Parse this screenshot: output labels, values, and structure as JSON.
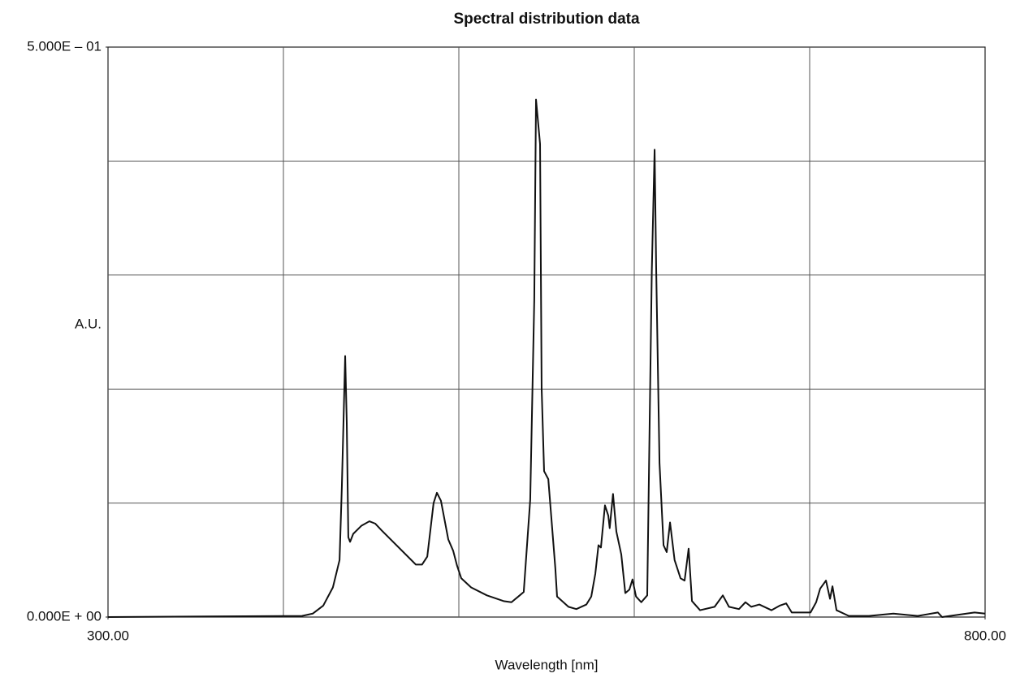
{
  "chart_data": {
    "type": "line",
    "title": "Spectral distribution data",
    "xlabel": "Wavelength [nm]",
    "ylabel": "A.U.",
    "xlim": [
      300,
      800
    ],
    "ylim": [
      0,
      0.5
    ],
    "xticks": [
      {
        "value": 300,
        "label": "300.00"
      },
      {
        "value": 800,
        "label": "800.00"
      }
    ],
    "yticks": [
      {
        "value": 0,
        "label": "0.000E + 00"
      },
      {
        "value": 0.5,
        "label": "5.000E – 01"
      }
    ],
    "xgrid": [
      400,
      500,
      600,
      700
    ],
    "ygrid": [
      0.1,
      0.2,
      0.3,
      0.4
    ],
    "grid": true,
    "series": [
      {
        "color": "#111111",
        "x": [
          300,
          410.6,
          416.7,
          422.7,
          428.2,
          432,
          433.3,
          435.2,
          436.1,
          437,
          438,
          439.8,
          444.4,
          449,
          452.3,
          456,
          475.5,
          479,
          482,
          485.6,
          487.5,
          489.8,
          494,
          496.8,
          499,
          501.4,
          507,
          516,
          525.5,
          530,
          534.7,
          537,
          540.7,
          543,
          544,
          546.3,
          547.2,
          548.6,
          551,
          555,
          556,
          562.5,
          567,
          572.7,
          575.5,
          577.8,
          579.6,
          581,
          583.3,
          585.2,
          586,
          587.9,
          589.8,
          592.6,
          594.9,
          597.2,
          599,
          601,
          604,
          607.4,
          610,
          611.6,
          612.5,
          614.4,
          616.7,
          618.5,
          620.4,
          623,
          626.4,
          628.7,
          631,
          632.9,
          637.5,
          645.8,
          650.5,
          654,
          659.7,
          663.4,
          666.7,
          671.3,
          678.2,
          682.9,
          686.6,
          689.8,
          695.8,
          700.5,
          703.7,
          706,
          709.3,
          711.6,
          713,
          715.3,
          722.3,
          733.8,
          747.7,
          761.6,
          773.1,
          775.5,
          789.4,
          794,
          800
        ],
        "values": [
          0,
          0.001,
          0.003,
          0.01,
          0.026,
          0.05,
          0.114,
          0.229,
          0.171,
          0.07,
          0.066,
          0.073,
          0.08,
          0.084,
          0.082,
          0.076,
          0.046,
          0.046,
          0.053,
          0.1,
          0.109,
          0.102,
          0.068,
          0.058,
          0.045,
          0.034,
          0.026,
          0.019,
          0.014,
          0.013,
          0.019,
          0.022,
          0.103,
          0.278,
          0.454,
          0.415,
          0.201,
          0.128,
          0.121,
          0.043,
          0.018,
          0.009,
          0.007,
          0.011,
          0.018,
          0.038,
          0.063,
          0.061,
          0.098,
          0.089,
          0.078,
          0.108,
          0.075,
          0.055,
          0.021,
          0.024,
          0.033,
          0.018,
          0.013,
          0.019,
          0.303,
          0.41,
          0.306,
          0.135,
          0.063,
          0.057,
          0.083,
          0.05,
          0.034,
          0.032,
          0.06,
          0.014,
          0.006,
          0.009,
          0.019,
          0.009,
          0.007,
          0.013,
          0.009,
          0.011,
          0.006,
          0.01,
          0.012,
          0.004,
          0.004,
          0.004,
          0.013,
          0.025,
          0.032,
          0.016,
          0.027,
          0.006,
          0.001,
          0.001,
          0.003,
          0.001,
          0.004,
          0,
          0.003,
          0.004,
          0.003
        ]
      }
    ]
  }
}
